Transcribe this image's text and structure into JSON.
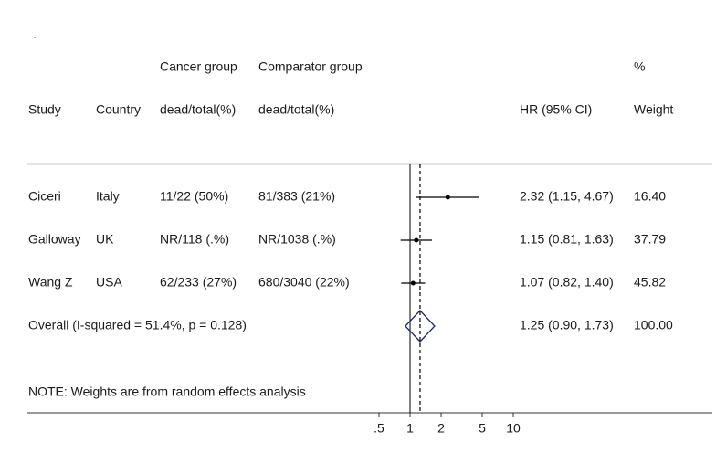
{
  "chart_data": {
    "type": "forest",
    "subtitle": ".",
    "headers": {
      "cancer_top": "Cancer group",
      "comparator_top": "Comparator group",
      "weight_top": "%",
      "study": "Study",
      "country": "Country",
      "cancer": "dead/total(%)",
      "comparator": "dead/total(%)",
      "hr": "HR (95% CI)",
      "weight": "Weight"
    },
    "studies": [
      {
        "name": "Ciceri",
        "country": "Italy",
        "cancer": "11/22 (50%)",
        "comparator": "81/383 (21%)",
        "hr": 2.32,
        "ci_low": 1.15,
        "ci_high": 4.67,
        "hr_ci": "2.32 (1.15, 4.67)",
        "weight": "16.40"
      },
      {
        "name": "Galloway",
        "country": "UK",
        "cancer": "NR/118 (.%)",
        "comparator": "NR/1038 (.%)",
        "hr": 1.15,
        "ci_low": 0.81,
        "ci_high": 1.63,
        "hr_ci": "1.15 (0.81, 1.63)",
        "weight": "37.79"
      },
      {
        "name": "Wang Z",
        "country": "USA",
        "cancer": "62/233 (27%)",
        "comparator": "680/3040 (22%)",
        "hr": 1.07,
        "ci_low": 0.82,
        "ci_high": 1.4,
        "hr_ci": "1.07 (0.82, 1.40)",
        "weight": "45.82"
      }
    ],
    "overall": {
      "label": "Overall  (I-squared = 51.4%, p = 0.128)",
      "hr": 1.25,
      "ci_low": 0.9,
      "ci_high": 1.73,
      "hr_ci": "1.25 (0.90, 1.73)",
      "weight": "100.00"
    },
    "note": "NOTE: Weights are from random effects analysis",
    "log_x": true,
    "null_value": 1,
    "xlim": [
      0.5,
      10
    ],
    "xticks": [
      {
        "value": 0.5,
        "label": ".5"
      },
      1,
      2,
      5,
      10
    ]
  }
}
